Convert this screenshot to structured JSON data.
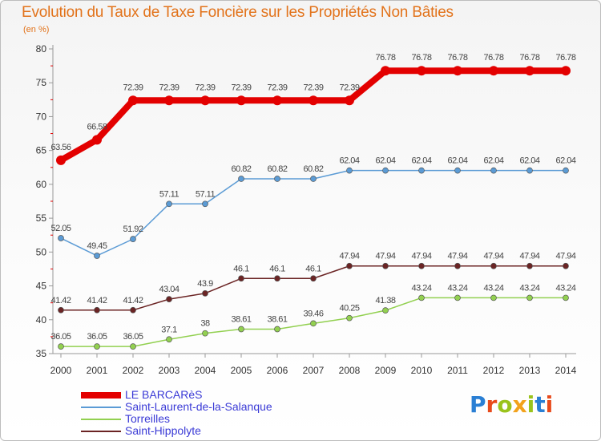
{
  "title": "Evolution du Taux de Taxe Foncière sur les Propriétés Non Bâties",
  "unit": "(en %)",
  "brand": {
    "letters": [
      "P",
      "r",
      "o",
      "x",
      "i",
      "t",
      "i"
    ],
    "colors": [
      "#2a7fd4",
      "#e84a1b",
      "#9ac31c",
      "#f2a21c",
      "#9ac31c",
      "#2a7fd4",
      "#e84a1b"
    ]
  },
  "chart_data": {
    "type": "line",
    "title": "Evolution du Taux de Taxe Foncière sur les Propriétés Non Bâties",
    "ylabel": "(en %)",
    "xlabel": "",
    "ylim": [
      35,
      80
    ],
    "yticks": [
      35,
      40,
      45,
      50,
      55,
      60,
      65,
      70,
      75,
      80
    ],
    "categories": [
      "2000",
      "2001",
      "2002",
      "2003",
      "2004",
      "2005",
      "2006",
      "2007",
      "2008",
      "2009",
      "2010",
      "2011",
      "2012",
      "2013",
      "2014"
    ],
    "grid": false,
    "legend_position": "bottom-left",
    "series": [
      {
        "name": "LE BARCARèS",
        "color": "#e30000",
        "values": [
          63.56,
          66.58,
          72.39,
          72.39,
          72.39,
          72.39,
          72.39,
          72.39,
          72.39,
          76.78,
          76.78,
          76.78,
          76.78,
          76.78,
          76.78
        ],
        "labels": [
          "63.56",
          "66.58",
          "72.39",
          "72.39",
          "72.39",
          "72.39",
          "72.39",
          "72.39",
          "72.39",
          "76.78",
          "76.78",
          "76.78",
          "76.78",
          "76.78",
          "76.78"
        ]
      },
      {
        "name": "Saint-Laurent-de-la-Salanque",
        "color": "#5b9bd5",
        "values": [
          52.05,
          49.45,
          51.92,
          57.11,
          57.11,
          60.82,
          60.82,
          60.82,
          62.04,
          62.04,
          62.04,
          62.04,
          62.04,
          62.04,
          62.04
        ],
        "labels": [
          "52.05",
          "49.45",
          "51.92",
          "57.11",
          "57.11",
          "60.82",
          "60.82",
          "60.82",
          "62.04",
          "62.04",
          "62.04",
          "62.04",
          "62.04",
          "62.04",
          "62.04"
        ]
      },
      {
        "name": "Torreilles",
        "color": "#92d050",
        "values": [
          36.05,
          36.05,
          36.05,
          37.1,
          38,
          38.61,
          38.61,
          39.46,
          40.25,
          41.38,
          43.24,
          43.24,
          43.24,
          43.24,
          43.24
        ],
        "labels": [
          "36.05",
          "36.05",
          "36.05",
          "37.1",
          "38",
          "38.61",
          "38.61",
          "39.46",
          "40.25",
          "41.38",
          "43.24",
          "43.24",
          "43.24",
          "43.24",
          "43.24"
        ]
      },
      {
        "name": "Saint-Hippolyte",
        "color": "#6b2424",
        "values": [
          41.42,
          41.42,
          41.42,
          43.04,
          43.9,
          46.1,
          46.1,
          46.1,
          47.94,
          47.94,
          47.94,
          47.94,
          47.94,
          47.94,
          47.94
        ],
        "labels": [
          "41.42",
          "41.42",
          "41.42",
          "43.04",
          "43.9",
          "46.1",
          "46.1",
          "46.1",
          "47.94",
          "47.94",
          "47.94",
          "47.94",
          "47.94",
          "47.94",
          "47.94"
        ]
      }
    ]
  }
}
